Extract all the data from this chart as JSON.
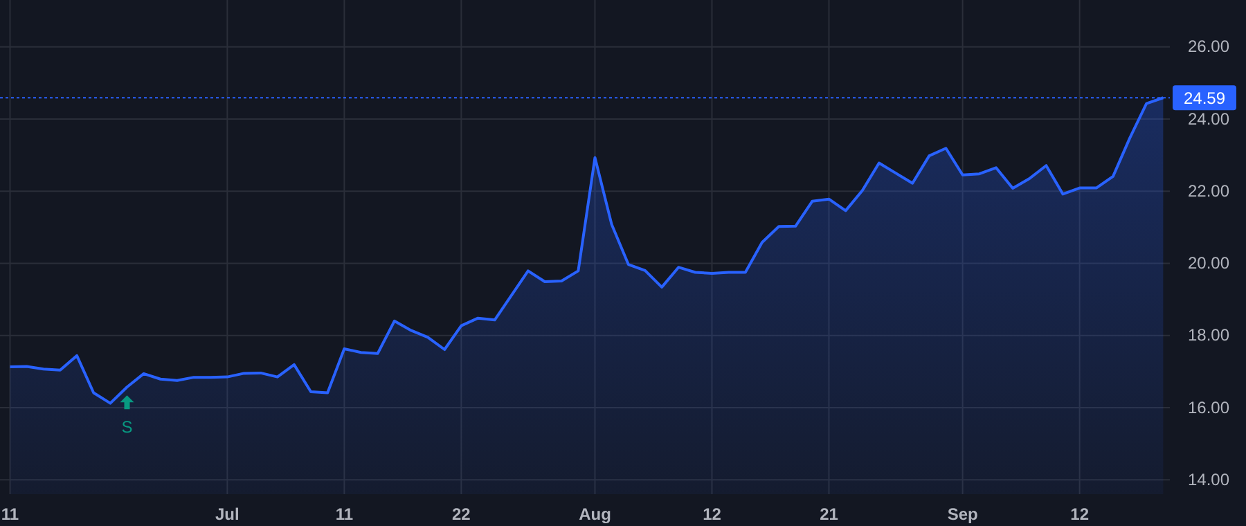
{
  "chart_data": {
    "type": "area",
    "categories": [
      "11",
      null,
      null,
      null,
      null,
      null,
      null,
      null,
      null,
      null,
      null,
      null,
      null,
      "Jul",
      null,
      null,
      null,
      null,
      null,
      null,
      "11",
      null,
      null,
      null,
      null,
      null,
      null,
      "22",
      null,
      null,
      null,
      null,
      null,
      null,
      null,
      "Aug",
      null,
      null,
      null,
      null,
      null,
      null,
      "12",
      null,
      null,
      null,
      null,
      null,
      null,
      "21",
      null,
      null,
      null,
      null,
      null,
      null,
      null,
      "Sep",
      null,
      null,
      null,
      null,
      null,
      null,
      "12",
      null,
      null,
      null,
      null,
      null
    ],
    "series": [
      {
        "color": "#2962ff",
        "values": [
          17.13,
          17.14,
          17.07,
          17.04,
          17.44,
          16.41,
          16.12,
          16.57,
          16.94,
          16.79,
          16.75,
          16.84,
          16.84,
          16.85,
          16.95,
          16.96,
          16.85,
          17.19,
          16.44,
          16.41,
          17.63,
          17.53,
          17.5,
          18.4,
          18.14,
          17.95,
          17.61,
          18.27,
          18.48,
          18.43,
          19.11,
          19.79,
          19.49,
          19.51,
          19.79,
          22.93,
          21.08,
          19.97,
          19.8,
          19.34,
          19.89,
          19.75,
          19.72,
          19.75,
          19.75,
          20.58,
          21.02,
          21.03,
          21.72,
          21.78,
          21.46,
          22.02,
          22.78,
          22.5,
          22.22,
          22.98,
          23.19,
          22.45,
          22.48,
          22.65,
          22.08,
          22.35,
          22.71,
          21.92,
          22.09,
          22.09,
          22.41,
          23.47,
          24.43,
          24.59
        ]
      }
    ],
    "ylim": [
      13.6,
      27.3
    ],
    "yticks": [
      {
        "value": 14,
        "label": "14.00"
      },
      {
        "value": 16,
        "label": "16.00"
      },
      {
        "value": 18,
        "label": "18.00"
      },
      {
        "value": 20,
        "label": "20.00"
      },
      {
        "value": 22,
        "label": "22.00"
      },
      {
        "value": 24,
        "label": "24.00"
      },
      {
        "value": 26,
        "label": "26.00"
      }
    ],
    "grid": true,
    "ref_lines": [
      {
        "axis": "y",
        "value": 24.59,
        "label": "24.59",
        "color": "#2962ff",
        "line_style": "dotted"
      }
    ],
    "annotations": [
      {
        "text": "S",
        "y": 16.57
      }
    ]
  }
}
